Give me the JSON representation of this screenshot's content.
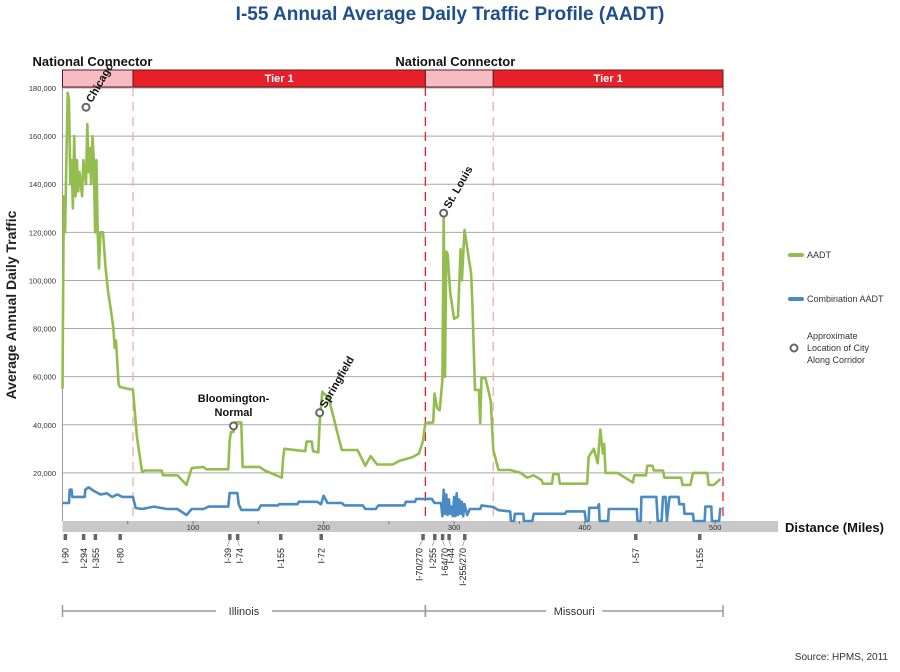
{
  "chart_data": {
    "type": "line",
    "title": "I-55 Annual Average Daily Traffic Profile (AADT)",
    "xlabel": "Distance (Miles)",
    "ylabel": "Average Annual Daily Traffic",
    "xlim": [
      0,
      506
    ],
    "ylim": [
      0,
      180000
    ],
    "x_ticks": [
      100,
      200,
      300,
      400,
      500
    ],
    "y_ticks": [
      {
        "v": 20000,
        "label": "20,000"
      },
      {
        "v": 40000,
        "label": "40,000"
      },
      {
        "v": 60000,
        "label": "60,000"
      },
      {
        "v": 80000,
        "label": "80,000"
      },
      {
        "v": 100000,
        "label": "100,000"
      },
      {
        "v": 120000,
        "label": "120,000"
      },
      {
        "v": 140000,
        "label": "140,000"
      },
      {
        "v": 160000,
        "label": "160,000"
      },
      {
        "v": 180000,
        "label": "180,000"
      }
    ],
    "grid": true,
    "legend_position": "right",
    "colors": {
      "aadt": "#94bd4f",
      "combination": "#4a8bc4",
      "tier1": "#e8202a",
      "connector": "#f7bcc3",
      "marker": "#666666"
    },
    "series": [
      {
        "name": "AADT",
        "key": "aadt",
        "points": [
          [
            0,
            55000
          ],
          [
            1,
            135000
          ],
          [
            2,
            120000
          ],
          [
            3,
            150000
          ],
          [
            4,
            178000
          ],
          [
            5,
            175000
          ],
          [
            6,
            140000
          ],
          [
            7,
            150000
          ],
          [
            8,
            130000
          ],
          [
            9,
            160000
          ],
          [
            10,
            135000
          ],
          [
            11,
            150000
          ],
          [
            12,
            137000
          ],
          [
            13,
            145000
          ],
          [
            15,
            135000
          ],
          [
            16,
            150000
          ],
          [
            18,
            140000
          ],
          [
            19,
            165000
          ],
          [
            20,
            145000
          ],
          [
            21,
            155000
          ],
          [
            22,
            140000
          ],
          [
            23,
            160000
          ],
          [
            24,
            150000
          ],
          [
            25,
            120000
          ],
          [
            26,
            150000
          ],
          [
            27,
            120000
          ],
          [
            28,
            105000
          ],
          [
            29,
            120000
          ],
          [
            31,
            120000
          ],
          [
            33,
            105000
          ],
          [
            35,
            95000
          ],
          [
            37,
            88000
          ],
          [
            39,
            80000
          ],
          [
            40,
            72000
          ],
          [
            41,
            75000
          ],
          [
            43,
            57000
          ],
          [
            44,
            55700
          ],
          [
            54,
            54500
          ],
          [
            57,
            35000
          ],
          [
            61,
            20400
          ],
          [
            63,
            21000
          ],
          [
            76,
            21000
          ],
          [
            77,
            19000
          ],
          [
            88,
            19000
          ],
          [
            95,
            15000
          ],
          [
            99,
            22000
          ],
          [
            108,
            22500
          ],
          [
            110,
            21500
          ],
          [
            127,
            21500
          ],
          [
            128,
            33000
          ],
          [
            129,
            37000
          ],
          [
            131,
            37000
          ],
          [
            132,
            41000
          ],
          [
            137,
            41000
          ],
          [
            138,
            22500
          ],
          [
            151,
            22500
          ],
          [
            155,
            21000
          ],
          [
            168,
            18000
          ],
          [
            169,
            26000
          ],
          [
            170,
            30000
          ],
          [
            186,
            29000
          ],
          [
            187,
            33000
          ],
          [
            191,
            33000
          ],
          [
            192,
            29000
          ],
          [
            196,
            28500
          ],
          [
            197,
            41000
          ],
          [
            199,
            53700
          ],
          [
            204,
            51000
          ],
          [
            210,
            38000
          ],
          [
            214,
            29500
          ],
          [
            226,
            29500
          ],
          [
            232,
            23000
          ],
          [
            236,
            27000
          ],
          [
            241,
            23500
          ],
          [
            253,
            23500
          ],
          [
            258,
            25000
          ],
          [
            268,
            26500
          ],
          [
            273,
            28000
          ],
          [
            276,
            33000
          ],
          [
            278,
            40800
          ],
          [
            284,
            41000
          ],
          [
            285,
            53000
          ],
          [
            287,
            47000
          ],
          [
            289,
            46000
          ],
          [
            291,
            58600
          ],
          [
            292,
            127000
          ],
          [
            293,
            60000
          ],
          [
            294,
            112000
          ],
          [
            295,
            111000
          ],
          [
            297,
            95000
          ],
          [
            300,
            84000
          ],
          [
            303,
            85000
          ],
          [
            305,
            113000
          ],
          [
            306,
            100000
          ],
          [
            308,
            121000
          ],
          [
            311,
            110000
          ],
          [
            313,
            103000
          ],
          [
            314,
            90000
          ],
          [
            316,
            54500
          ],
          [
            319,
            54500
          ],
          [
            320,
            40800
          ],
          [
            321,
            59500
          ],
          [
            324,
            59500
          ],
          [
            328,
            50000
          ],
          [
            330,
            29500
          ],
          [
            334,
            21200
          ],
          [
            343,
            21200
          ],
          [
            351,
            20000
          ],
          [
            356,
            18000
          ],
          [
            361,
            19000
          ],
          [
            367,
            17000
          ],
          [
            368,
            15500
          ],
          [
            375,
            15500
          ],
          [
            376,
            19500
          ],
          [
            380,
            19500
          ],
          [
            381,
            15500
          ],
          [
            402,
            15500
          ],
          [
            403,
            26600
          ],
          [
            407,
            30000
          ],
          [
            410,
            24000
          ],
          [
            412,
            38000
          ],
          [
            414,
            28000
          ],
          [
            415,
            32000
          ],
          [
            416,
            20000
          ],
          [
            425,
            20000
          ],
          [
            437,
            16000
          ],
          [
            438,
            19000
          ],
          [
            447,
            19000
          ],
          [
            448,
            23000
          ],
          [
            452,
            23000
          ],
          [
            453,
            21000
          ],
          [
            460,
            21000
          ],
          [
            461,
            18000
          ],
          [
            474,
            18000
          ],
          [
            475,
            15000
          ],
          [
            481,
            15000
          ],
          [
            483,
            20000
          ],
          [
            494,
            20000
          ],
          [
            495,
            15000
          ],
          [
            499,
            15000
          ],
          [
            504,
            17500
          ]
        ]
      },
      {
        "name": "Combination AADT",
        "key": "combination",
        "points": [
          [
            0,
            7500
          ],
          [
            5,
            7500
          ],
          [
            5.5,
            13000
          ],
          [
            7,
            13000
          ],
          [
            7.5,
            10000
          ],
          [
            17,
            10000
          ],
          [
            17.5,
            13000
          ],
          [
            20,
            14000
          ],
          [
            24,
            12500
          ],
          [
            29,
            11000
          ],
          [
            34,
            11500
          ],
          [
            38,
            10000
          ],
          [
            42,
            11000
          ],
          [
            46,
            10000
          ],
          [
            54,
            10000
          ],
          [
            56,
            5400
          ],
          [
            61,
            5000
          ],
          [
            70,
            6000
          ],
          [
            80,
            5000
          ],
          [
            88,
            5000
          ],
          [
            95,
            2500
          ],
          [
            99,
            5000
          ],
          [
            108,
            5000
          ],
          [
            112,
            6000
          ],
          [
            127,
            6000
          ],
          [
            128,
            11600
          ],
          [
            134,
            11600
          ],
          [
            135,
            7000
          ],
          [
            137,
            4600
          ],
          [
            150,
            4600
          ],
          [
            152,
            6500
          ],
          [
            165,
            6500
          ],
          [
            166,
            7000
          ],
          [
            180,
            7000
          ],
          [
            181,
            8000
          ],
          [
            195,
            8000
          ],
          [
            198,
            7000
          ],
          [
            200,
            10500
          ],
          [
            203,
            7500
          ],
          [
            214,
            7500
          ],
          [
            216,
            6500
          ],
          [
            230,
            6500
          ],
          [
            232,
            5000
          ],
          [
            240,
            5000
          ],
          [
            242,
            6500
          ],
          [
            262,
            6500
          ],
          [
            263,
            8000
          ],
          [
            270,
            8000
          ],
          [
            271,
            9200
          ],
          [
            283,
            9200
          ],
          [
            285,
            7500
          ],
          [
            290,
            7500
          ],
          [
            291,
            2000
          ],
          [
            292,
            13000
          ],
          [
            293,
            3000
          ],
          [
            294,
            11000
          ],
          [
            295,
            2500
          ],
          [
            296,
            9000
          ],
          [
            297,
            3000
          ],
          [
            298,
            6000
          ],
          [
            299,
            2000
          ],
          [
            300,
            10000
          ],
          [
            301,
            2000
          ],
          [
            302,
            11500
          ],
          [
            303,
            2500
          ],
          [
            304,
            9000
          ],
          [
            305,
            3000
          ],
          [
            306,
            8000
          ],
          [
            307,
            2000
          ],
          [
            308,
            7000
          ],
          [
            310,
            2500
          ],
          [
            312,
            5000
          ],
          [
            320,
            5000
          ],
          [
            321,
            6500
          ],
          [
            330,
            5800
          ],
          [
            334,
            4500
          ],
          [
            343,
            4000
          ],
          [
            343.5,
            0
          ],
          [
            346,
            0
          ],
          [
            346.5,
            3000
          ],
          [
            353,
            3000
          ],
          [
            353.5,
            0
          ],
          [
            360,
            0
          ],
          [
            361,
            3000
          ],
          [
            385,
            3000
          ],
          [
            386,
            4000
          ],
          [
            400,
            4000
          ],
          [
            401,
            0
          ],
          [
            403,
            0
          ],
          [
            403.5,
            5500
          ],
          [
            410,
            5500
          ],
          [
            411,
            7000
          ],
          [
            411.5,
            0
          ],
          [
            418,
            0
          ],
          [
            418.5,
            5000
          ],
          [
            440,
            5000
          ],
          [
            440.5,
            0
          ],
          [
            443,
            0
          ],
          [
            443.5,
            10000
          ],
          [
            455,
            10000
          ],
          [
            456,
            0
          ],
          [
            459,
            0
          ],
          [
            460,
            10000
          ],
          [
            462,
            10000
          ],
          [
            463,
            0
          ],
          [
            465,
            10000
          ],
          [
            472,
            10000
          ],
          [
            472.5,
            7000
          ],
          [
            476,
            7000
          ],
          [
            476.5,
            3000
          ],
          [
            483,
            3000
          ],
          [
            483.5,
            0
          ],
          [
            492,
            0
          ],
          [
            492.5,
            6000
          ],
          [
            497,
            6000
          ],
          [
            497.5,
            0
          ],
          [
            503,
            0
          ],
          [
            504,
            5500
          ]
        ]
      }
    ],
    "cities": [
      {
        "label": "Chicago",
        "mile": 18,
        "v": 172000
      },
      {
        "label": "Bloomington-",
        "label2": "Normal",
        "mile": 131,
        "v": 39500
      },
      {
        "label": "Springfield",
        "mile": 197,
        "v": 45000
      },
      {
        "label": "St. Louis",
        "mile": 292,
        "v": 128000
      }
    ],
    "tiers": [
      {
        "label": "",
        "kind": "connector",
        "from": 0,
        "to": 54
      },
      {
        "label": "Tier 1",
        "kind": "tier1",
        "from": 54,
        "to": 278
      },
      {
        "label": "",
        "kind": "connector",
        "from": 278,
        "to": 330
      },
      {
        "label": "Tier 1",
        "kind": "tier1",
        "from": 330,
        "to": 506
      }
    ],
    "tier_headers": [
      {
        "label": "National Connector",
        "mile": 0
      },
      {
        "label": "National Connector",
        "mile": 278
      }
    ],
    "interchanges": [
      {
        "label": "I-90",
        "mile": 2
      },
      {
        "label": "I-294",
        "mile": 16
      },
      {
        "label": "I-355",
        "mile": 25
      },
      {
        "label": "I-80",
        "mile": 44
      },
      {
        "label": "I-39",
        "mile": 128
      },
      {
        "label": "I-74",
        "mile": 134
      },
      {
        "label": "I-155",
        "mile": 167
      },
      {
        "label": "I-72",
        "mile": 198
      },
      {
        "label": "I-70/270",
        "mile": 276
      },
      {
        "label": "I-255",
        "mile": 285
      },
      {
        "label": "I-64/70",
        "mile": 291
      },
      {
        "label": "I-44",
        "mile": 296
      },
      {
        "label": "I-255/270",
        "mile": 308
      },
      {
        "label": "I-57",
        "mile": 439
      },
      {
        "label": "I-155",
        "mile": 488
      }
    ],
    "states": [
      {
        "label": "Illinois",
        "from": 0,
        "to": 278
      },
      {
        "label": "Missouri",
        "from": 278,
        "to": 506
      }
    ],
    "legend": {
      "aadt": "AADT",
      "combination": "Combination AADT",
      "city_lines": [
        "Approximate",
        "Location of City",
        "Along Corridor"
      ]
    },
    "source": "Source: HPMS, 2011"
  }
}
